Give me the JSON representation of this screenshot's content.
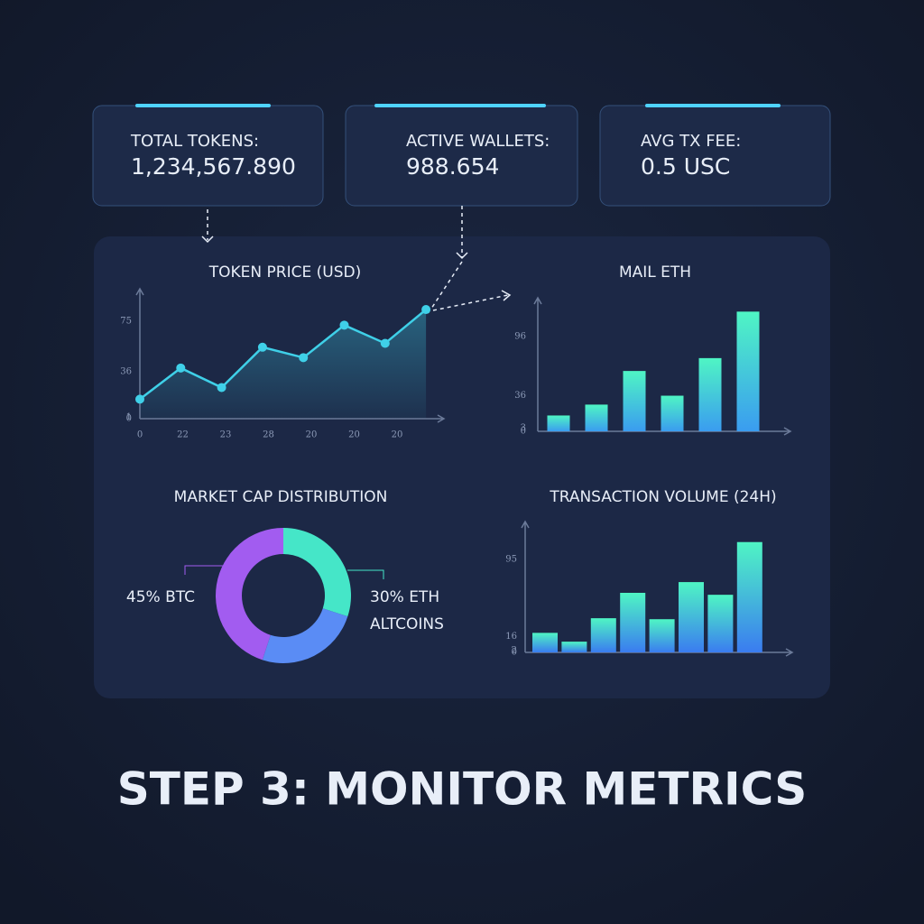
{
  "cards": [
    {
      "label": "TOTAL TOKENS:",
      "value": "1,234,567.890"
    },
    {
      "label": "ACTIVE WALLETS:",
      "value": "988.654"
    },
    {
      "label": "AVG TX FEE:",
      "value": "0.5 USC"
    }
  ],
  "chart_data": [
    {
      "type": "line",
      "title": "TOKEN PRICE (USD)",
      "categories": [
        "0",
        "22",
        "23",
        "28",
        "20",
        "20",
        "20",
        null
      ],
      "values": [
        15,
        39,
        24,
        55,
        47,
        72,
        58,
        84
      ],
      "color": "#3fd0e8",
      "ylim": [
        0,
        100
      ],
      "yticks": [
        0,
        1,
        36,
        75
      ]
    },
    {
      "type": "bar",
      "title": "MAIL ETH",
      "categories": [
        null,
        null,
        null,
        null,
        null,
        null
      ],
      "values": [
        16,
        27,
        61,
        36,
        74,
        121
      ],
      "gradient": [
        "#4ff5c4",
        "#3a9cf0"
      ],
      "ylim": [
        0,
        135
      ],
      "yticks": [
        0,
        3,
        36,
        96
      ]
    },
    {
      "type": "pie",
      "title": "MARKET CAP DISTRIBUTION",
      "categories": [
        "30% ETH",
        "ALTCOINS",
        "45% BTC"
      ],
      "values": [
        30,
        25,
        45
      ],
      "colors": [
        "#45e6c8",
        "#5a8cf5",
        "#a25cf0"
      ]
    },
    {
      "type": "bar",
      "title": "TRANSACTION VOLUME (24H)",
      "categories": [
        null,
        null,
        null,
        null,
        null,
        null,
        null,
        null
      ],
      "values": [
        20,
        11,
        35,
        61,
        34,
        72,
        59,
        113
      ],
      "gradient": [
        "#4ff5c4",
        "#3a7cf0"
      ],
      "ylim": [
        0,
        134
      ],
      "yticks": [
        0,
        2,
        16,
        95
      ]
    }
  ],
  "caption": "STEP 3: MONITOR METRICS"
}
